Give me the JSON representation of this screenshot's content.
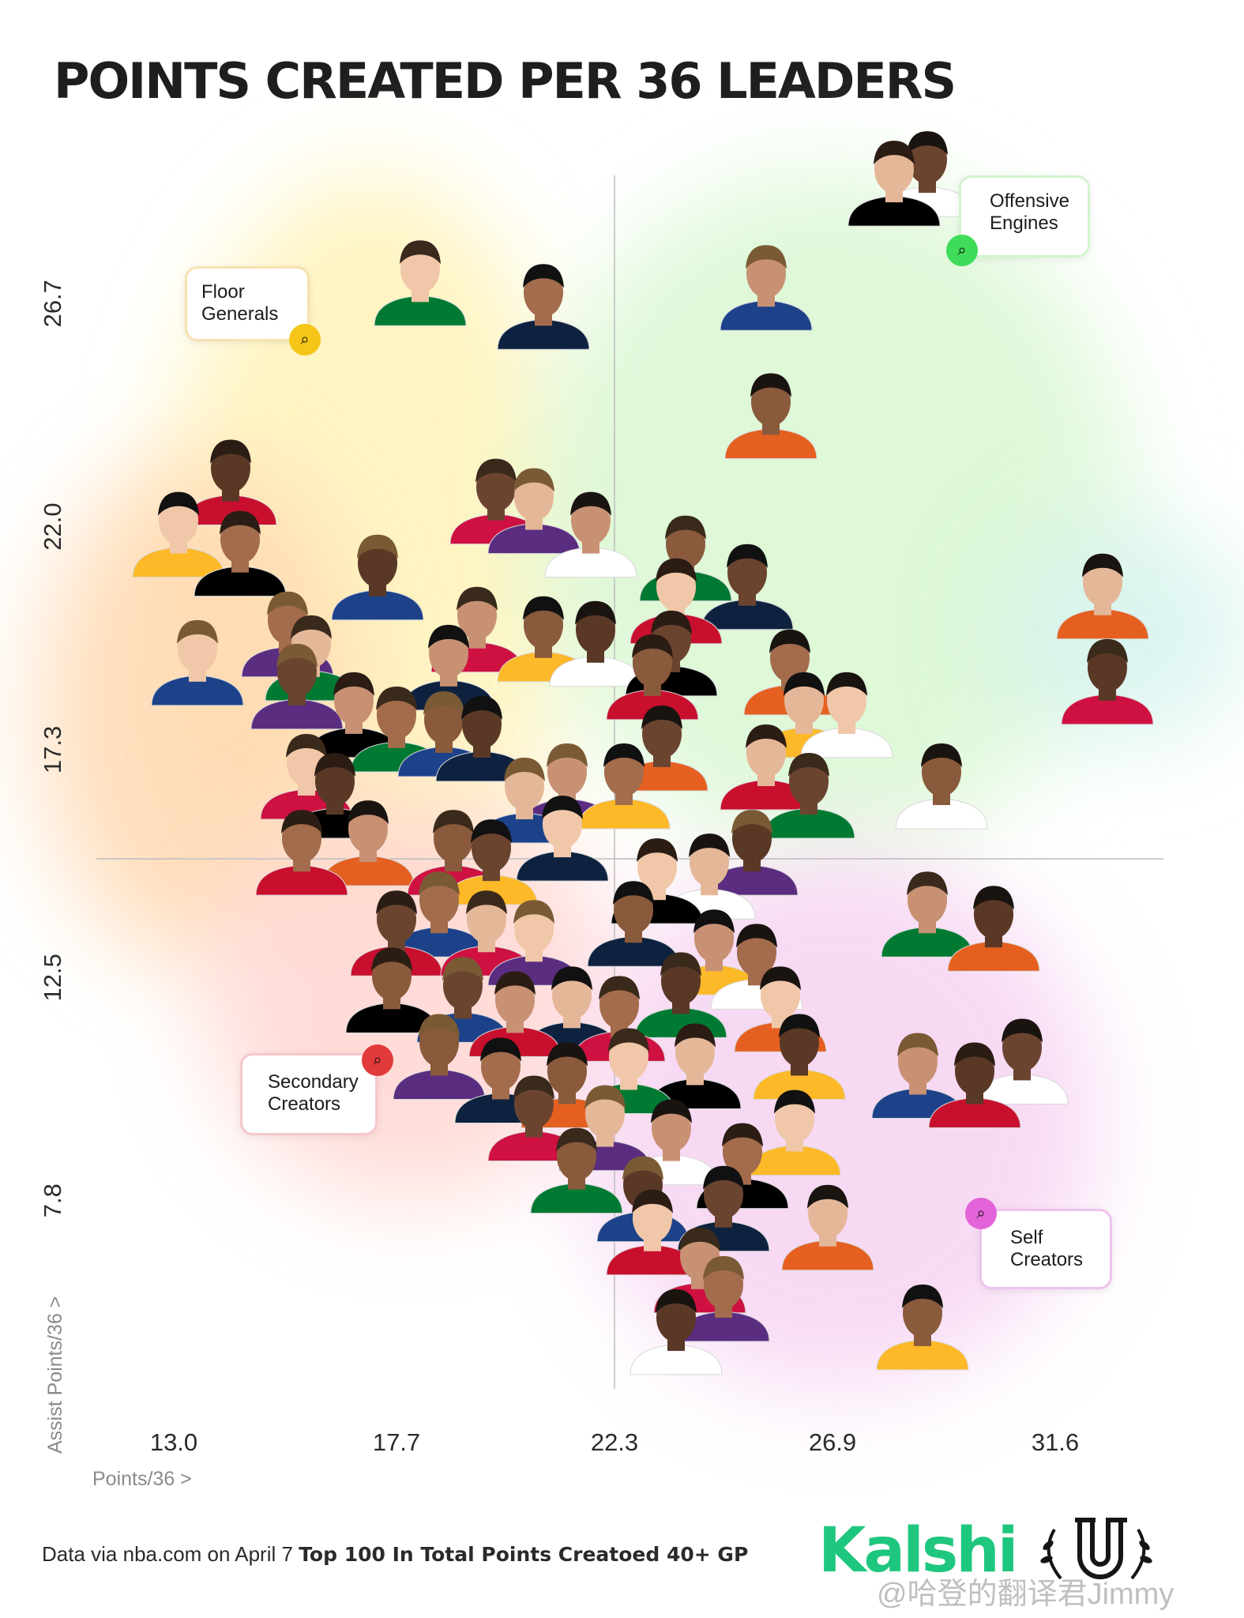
{
  "title": "POINTS CREATED PER 36 LEADERS",
  "axes": {
    "x_label": "Points/36 >",
    "y_label": "Assist Points/36 >"
  },
  "quadrants": [
    {
      "id": "floor",
      "label_line1": "Floor",
      "label_line2": "Generals",
      "color": "#f5c518"
    },
    {
      "id": "offensive",
      "label_line1": "Offensive",
      "label_line2": "Engines",
      "color": "#3fdc5a"
    },
    {
      "id": "secondary",
      "label_line1": "Secondary",
      "label_line2": "Creators",
      "color": "#e23a3a"
    },
    {
      "id": "self",
      "label_line1": "Self",
      "label_line2": "Creators",
      "color": "#e264d8"
    }
  ],
  "source_prefix": "Data via nba.com on April 7",
  "source_bold": "Top 100 In Total Points Creatoed 40+ GP",
  "brand": "Kalshi",
  "brand_color": "#1fc77e",
  "watermark": "@哈登的翻译君Jimmy",
  "icons": [
    "map-search-icon",
    "laurel-u-logo"
  ],
  "chart_data": {
    "type": "scatter",
    "xlabel": "Points/36 >",
    "ylabel": "Assist Points/36 >",
    "xlim": [
      10.5,
      34.0
    ],
    "ylim": [
      3.3,
      30.1
    ],
    "x_ticks": [
      "13.0",
      "17.7",
      "22.3",
      "26.9",
      "31.6"
    ],
    "y_ticks": [
      "26.7",
      "22.0",
      "17.3",
      "12.5",
      "7.8"
    ],
    "divider_x": 22.3,
    "divider_y": 15.0,
    "points": [
      [
        28.2,
        29.0
      ],
      [
        28.9,
        29.2
      ],
      [
        18.2,
        26.9
      ],
      [
        20.8,
        26.4
      ],
      [
        25.5,
        26.8
      ],
      [
        25.6,
        24.1
      ],
      [
        14.2,
        22.7
      ],
      [
        13.1,
        21.6
      ],
      [
        14.4,
        21.2
      ],
      [
        19.8,
        22.3
      ],
      [
        20.6,
        22.1
      ],
      [
        17.3,
        20.7
      ],
      [
        21.8,
        21.6
      ],
      [
        23.8,
        21.1
      ],
      [
        25.1,
        20.5
      ],
      [
        23.6,
        20.2
      ],
      [
        32.6,
        20.3
      ],
      [
        32.7,
        18.5
      ],
      [
        13.5,
        18.9
      ],
      [
        15.4,
        19.5
      ],
      [
        15.9,
        19.0
      ],
      [
        15.6,
        18.4
      ],
      [
        19.4,
        19.6
      ],
      [
        18.8,
        18.8
      ],
      [
        20.8,
        19.4
      ],
      [
        21.9,
        19.3
      ],
      [
        23.5,
        19.1
      ],
      [
        23.1,
        18.6
      ],
      [
        26.0,
        18.7
      ],
      [
        26.3,
        17.8
      ],
      [
        27.2,
        17.8
      ],
      [
        16.8,
        17.8
      ],
      [
        17.7,
        17.5
      ],
      [
        18.7,
        17.4
      ],
      [
        19.5,
        17.3
      ],
      [
        23.3,
        17.1
      ],
      [
        15.8,
        16.5
      ],
      [
        16.4,
        16.1
      ],
      [
        20.4,
        16.0
      ],
      [
        21.3,
        16.3
      ],
      [
        22.5,
        16.3
      ],
      [
        25.5,
        16.7
      ],
      [
        26.4,
        16.1
      ],
      [
        29.2,
        16.3
      ],
      [
        15.7,
        14.9
      ],
      [
        17.1,
        15.1
      ],
      [
        18.9,
        14.9
      ],
      [
        19.7,
        14.7
      ],
      [
        21.2,
        15.2
      ],
      [
        23.2,
        14.3
      ],
      [
        24.3,
        14.4
      ],
      [
        25.2,
        14.9
      ],
      [
        28.9,
        13.6
      ],
      [
        30.3,
        13.3
      ],
      [
        17.7,
        13.2
      ],
      [
        18.6,
        13.6
      ],
      [
        19.6,
        13.2
      ],
      [
        20.6,
        13.0
      ],
      [
        22.7,
        13.4
      ],
      [
        24.4,
        12.8
      ],
      [
        25.3,
        12.5
      ],
      [
        17.6,
        12.0
      ],
      [
        19.1,
        11.8
      ],
      [
        20.2,
        11.5
      ],
      [
        21.4,
        11.6
      ],
      [
        22.4,
        11.4
      ],
      [
        23.7,
        11.9
      ],
      [
        25.8,
        11.6
      ],
      [
        18.6,
        10.6
      ],
      [
        19.9,
        10.1
      ],
      [
        21.3,
        10.0
      ],
      [
        22.6,
        10.3
      ],
      [
        24.0,
        10.4
      ],
      [
        26.2,
        10.6
      ],
      [
        20.6,
        9.3
      ],
      [
        22.1,
        9.1
      ],
      [
        23.5,
        8.8
      ],
      [
        25.0,
        8.3
      ],
      [
        26.1,
        9.0
      ],
      [
        21.5,
        8.2
      ],
      [
        22.9,
        7.6
      ],
      [
        24.6,
        7.4
      ],
      [
        28.7,
        10.2
      ],
      [
        29.9,
        10.0
      ],
      [
        30.9,
        10.5
      ],
      [
        23.1,
        6.9
      ],
      [
        24.1,
        6.1
      ],
      [
        26.8,
        7.0
      ],
      [
        23.6,
        4.8
      ],
      [
        24.6,
        5.5
      ],
      [
        28.8,
        4.9
      ]
    ]
  }
}
